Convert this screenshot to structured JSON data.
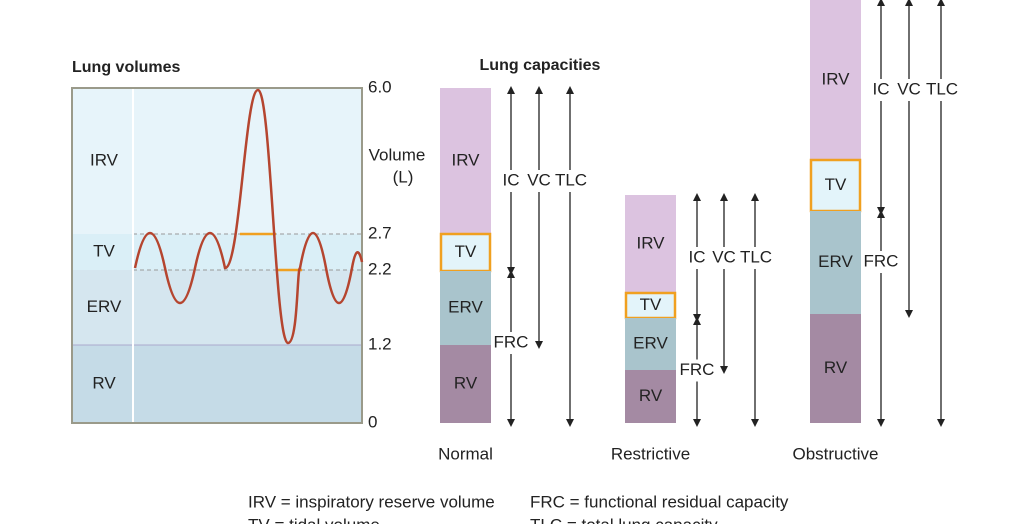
{
  "lung_volumes": {
    "title": "Lung volumes",
    "bands": [
      "IRV",
      "TV",
      "ERV",
      "RV"
    ],
    "axis_label": [
      "Volume",
      "(L)"
    ],
    "ticks": [
      "6.0",
      "2.7",
      "2.2",
      "1.2",
      "0"
    ]
  },
  "lung_capacities": {
    "title": "Lung capacities",
    "capacity_labels": [
      "IC",
      "VC",
      "TLC",
      "FRC"
    ],
    "conditions": [
      {
        "name": "Normal",
        "segments": [
          "IRV",
          "TV",
          "ERV",
          "RV"
        ]
      },
      {
        "name": "Restrictive",
        "segments": [
          "IRV",
          "TV",
          "ERV",
          "RV"
        ]
      },
      {
        "name": "Obstructive",
        "segments": [
          "IRV",
          "TV",
          "ERV",
          "RV"
        ]
      }
    ]
  },
  "legend": [
    "IRV = inspiratory reserve volume",
    "FRC = functional residual capacity",
    "TV = tidal volume",
    "TLC = total lung capacity"
  ]
}
